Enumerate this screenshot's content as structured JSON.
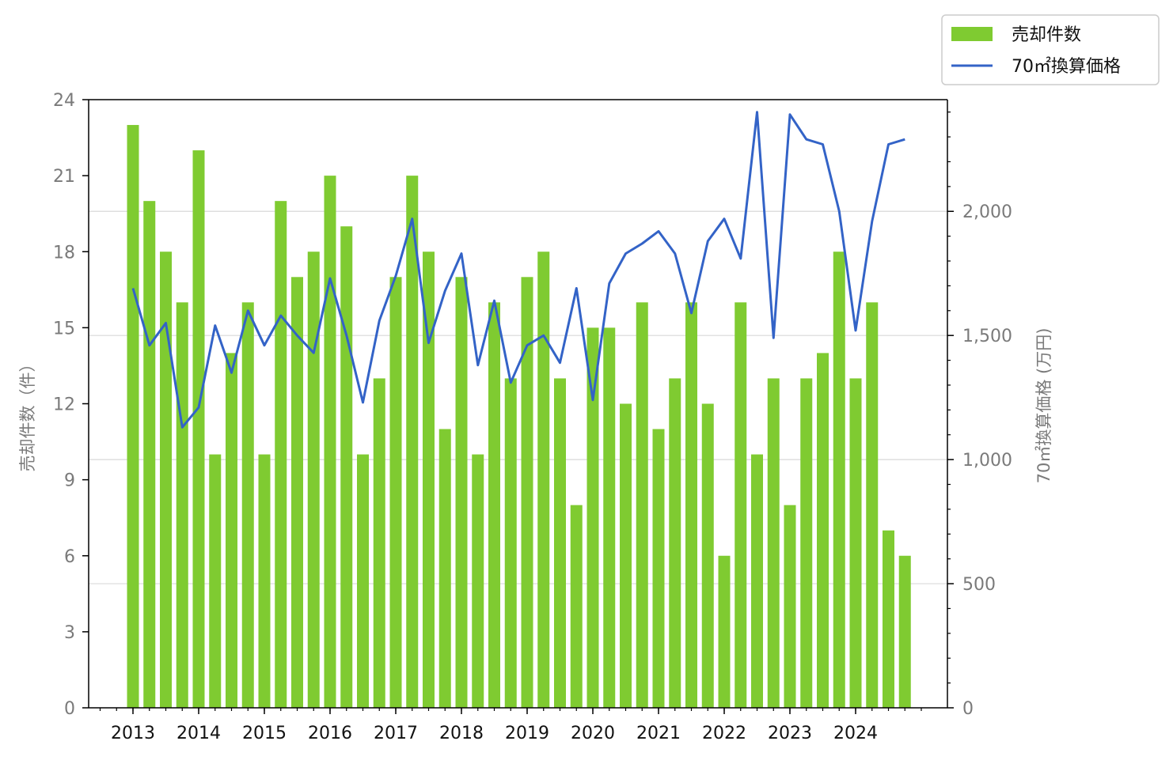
{
  "chart_data": {
    "type": "bar+line",
    "title": "",
    "colors": {
      "bar": "#7fcb31",
      "line": "#3363c7",
      "grid": "#d9d9d9"
    },
    "x_axis": {
      "tick_labels": [
        "2013",
        "2014",
        "2015",
        "2016",
        "2017",
        "2018",
        "2019",
        "2020",
        "2021",
        "2022",
        "2023",
        "2024"
      ]
    },
    "y_left": {
      "label": "売却件数（件）",
      "range": [
        0,
        24
      ],
      "ticks": [
        0,
        3,
        6,
        9,
        12,
        15,
        18,
        21,
        24
      ],
      "tick_labels": [
        "0",
        "3",
        "6",
        "9",
        "12",
        "15",
        "18",
        "21",
        "24"
      ]
    },
    "y_right": {
      "label": "70㎡換算価格 (万円)",
      "range": [
        0,
        2450
      ],
      "ticks": [
        0,
        500,
        1000,
        1500,
        2000
      ],
      "tick_labels": [
        "0",
        "500",
        "1,000",
        "1,500",
        "2,000"
      ],
      "grid": true
    },
    "legend": {
      "position": "top-right, outside",
      "entries": [
        {
          "label": "売却件数",
          "kind": "bar"
        },
        {
          "label": "70㎡換算価格",
          "kind": "line"
        }
      ]
    },
    "quarters": [
      "2013Q1",
      "2013Q2",
      "2013Q3",
      "2013Q4",
      "2014Q1",
      "2014Q2",
      "2014Q3",
      "2014Q4",
      "2015Q1",
      "2015Q2",
      "2015Q3",
      "2015Q4",
      "2016Q1",
      "2016Q2",
      "2016Q3",
      "2016Q4",
      "2017Q1",
      "2017Q2",
      "2017Q3",
      "2017Q4",
      "2018Q1",
      "2018Q2",
      "2018Q3",
      "2018Q4",
      "2019Q1",
      "2019Q2",
      "2019Q3",
      "2019Q4",
      "2020Q1",
      "2020Q2",
      "2020Q3",
      "2020Q4",
      "2021Q1",
      "2021Q2",
      "2021Q3",
      "2021Q4",
      "2022Q1",
      "2022Q2",
      "2022Q3",
      "2022Q4",
      "2023Q1",
      "2023Q2",
      "2023Q3",
      "2023Q4",
      "2024Q1",
      "2024Q2",
      "2024Q3",
      "2024Q4"
    ],
    "series": [
      {
        "name": "売却件数",
        "axis": "left",
        "type": "bar",
        "values": [
          23,
          20,
          18,
          16,
          22,
          10,
          14,
          16,
          10,
          20,
          17,
          18,
          21,
          19,
          10,
          13,
          17,
          21,
          18,
          11,
          17,
          10,
          16,
          13,
          17,
          18,
          13,
          8,
          15,
          15,
          12,
          16,
          11,
          13,
          16,
          12,
          6,
          16,
          10,
          13,
          8,
          13,
          14,
          18,
          13,
          16,
          7,
          6
        ]
      },
      {
        "name": "70㎡換算価格",
        "axis": "right",
        "type": "line",
        "values": [
          1690,
          1460,
          1550,
          1130,
          1210,
          1540,
          1350,
          1600,
          1460,
          1580,
          1500,
          1430,
          1730,
          1500,
          1230,
          1560,
          1740,
          1970,
          1470,
          1680,
          1830,
          1380,
          1640,
          1310,
          1460,
          1500,
          1390,
          1690,
          1240,
          1710,
          1830,
          1870,
          1920,
          1830,
          1590,
          1880,
          1970,
          1810,
          2400,
          1490,
          2390,
          2290,
          2270,
          2000,
          1520,
          1960,
          2270,
          2290
        ]
      }
    ]
  }
}
